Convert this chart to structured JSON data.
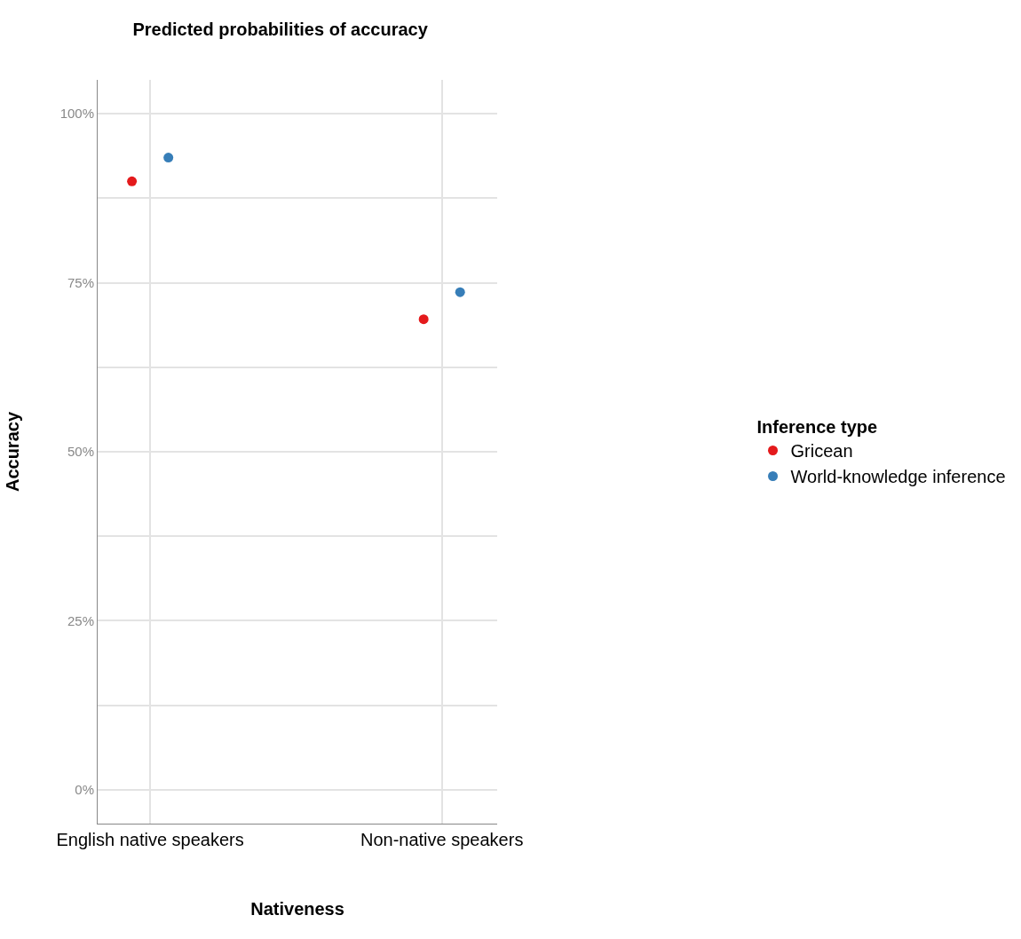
{
  "chart_data": {
    "type": "scatter",
    "title": "Predicted probabilities of accuracy",
    "xlabel": "Nativeness",
    "ylabel": "Accuracy",
    "legend_title": "Inference type",
    "categories": [
      "English native speakers",
      "Non-native speakers"
    ],
    "series": [
      {
        "name": "Gricean",
        "color": "#e41a1c",
        "values": [
          90,
          69.6
        ]
      },
      {
        "name": "World-knowledge inference",
        "color": "#377eb8",
        "values": [
          93.5,
          73.6
        ]
      }
    ],
    "ylim": [
      -5,
      105
    ],
    "yticks": [
      {
        "value": 0,
        "label": "0%"
      },
      {
        "value": 12.5,
        "label": null
      },
      {
        "value": 25,
        "label": "25%"
      },
      {
        "value": 37.5,
        "label": null
      },
      {
        "value": 50,
        "label": "50%"
      },
      {
        "value": 62.5,
        "label": null
      },
      {
        "value": 75,
        "label": "75%"
      },
      {
        "value": 87.5,
        "label": null
      },
      {
        "value": 100,
        "label": "100%"
      }
    ],
    "grid": true,
    "legend": "right",
    "marker": "circle"
  }
}
